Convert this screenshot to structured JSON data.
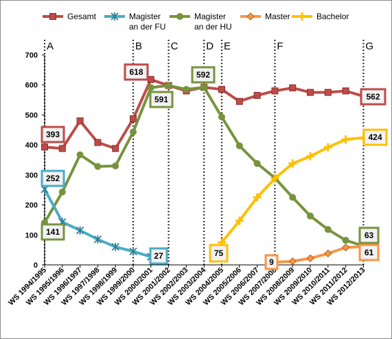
{
  "chart_data": {
    "type": "line",
    "title": "",
    "xlabel": "",
    "ylabel": "",
    "ylim": [
      0,
      700
    ],
    "yticks": [
      0,
      100,
      200,
      300,
      400,
      500,
      600,
      700
    ],
    "grid": false,
    "legend_position": "top",
    "categories": [
      "WS 1994/1995",
      "WS 1995/1996",
      "WS 1996/1997",
      "WS 1997/1998",
      "WS 1998/1999",
      "WS 1999/2000",
      "WS 2000/2001",
      "WS 2001/2002",
      "WS 2002/2003",
      "WS 2003/2004",
      "WS 2004/2005",
      "WS 2005/2006",
      "WS 2006/2007",
      "WS 2007/2008",
      "WS 2008/2009",
      "WS 2009/2010",
      "WS 2010/2011",
      "WS 2011/2012",
      "WS 2012/2013"
    ],
    "series": [
      {
        "key": "gesamt",
        "name": "Gesamt",
        "color": "#be4b48",
        "marker": "square",
        "values": [
          393,
          388,
          480,
          408,
          388,
          487,
          618,
          598,
          580,
          592,
          585,
          545,
          565,
          580,
          590,
          575,
          575,
          580,
          562
        ]
      },
      {
        "key": "fu",
        "name": "Magister an der FU",
        "legend_lines": [
          "Magister",
          "an der FU"
        ],
        "color": "#4bacc6",
        "marker": "star",
        "values": [
          252,
          143,
          115,
          85,
          60,
          45,
          27,
          null,
          null,
          null,
          null,
          null,
          null,
          null,
          null,
          null,
          null,
          null,
          null
        ]
      },
      {
        "key": "hu",
        "name": "Magister an der HU",
        "legend_lines": [
          "Magister",
          "an der HU"
        ],
        "color": "#77933c",
        "marker": "circle",
        "values": [
          141,
          243,
          367,
          328,
          330,
          443,
          591,
          598,
          585,
          592,
          493,
          397,
          338,
          290,
          225,
          163,
          118,
          82,
          63
        ]
      },
      {
        "key": "master",
        "name": "Master",
        "color": "#f79646",
        "marker": "diamond",
        "values": [
          null,
          null,
          null,
          null,
          null,
          null,
          null,
          null,
          null,
          null,
          null,
          null,
          null,
          9,
          12,
          22,
          38,
          58,
          61
        ]
      },
      {
        "key": "bachelor",
        "name": "Bachelor",
        "color": "#ffc000",
        "marker": "plus",
        "values": [
          null,
          null,
          null,
          null,
          null,
          null,
          null,
          null,
          null,
          null,
          75,
          147,
          225,
          288,
          338,
          362,
          392,
          418,
          424
        ]
      }
    ],
    "phases": [
      {
        "label": "A",
        "index": 0
      },
      {
        "label": "B",
        "index": 5
      },
      {
        "label": "C",
        "index": 7
      },
      {
        "label": "D",
        "index": 9
      },
      {
        "label": "E",
        "index": 10
      },
      {
        "label": "F",
        "index": 13
      },
      {
        "label": "G",
        "index": 18
      }
    ],
    "callouts": [
      {
        "text": "393",
        "series": "gesamt",
        "color": "#be4b48"
      },
      {
        "text": "252",
        "series": "fu",
        "color": "#4bacc6"
      },
      {
        "text": "141",
        "series": "hu",
        "color": "#77933c"
      },
      {
        "text": "618",
        "series": "gesamt",
        "color": "#be4b48"
      },
      {
        "text": "591",
        "series": "hu",
        "color": "#77933c"
      },
      {
        "text": "592",
        "series": "hu",
        "color": "#77933c"
      },
      {
        "text": "27",
        "series": "fu",
        "color": "#4bacc6"
      },
      {
        "text": "75",
        "series": "bachelor",
        "color": "#ffc000"
      },
      {
        "text": "9",
        "series": "master",
        "color": "#f79646"
      },
      {
        "text": "562",
        "series": "gesamt",
        "color": "#be4b48"
      },
      {
        "text": "424",
        "series": "bachelor",
        "color": "#ffc000"
      },
      {
        "text": "63",
        "series": "hu",
        "color": "#77933c"
      },
      {
        "text": "61",
        "series": "master",
        "color": "#f79646"
      }
    ]
  }
}
